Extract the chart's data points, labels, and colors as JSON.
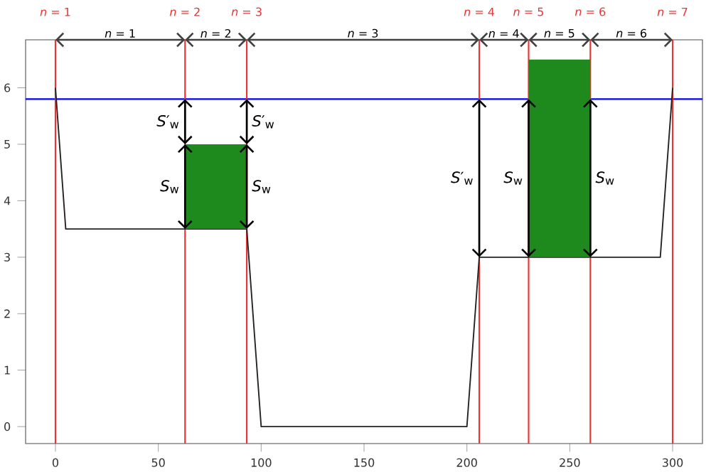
{
  "chart_data": {
    "type": "line",
    "xlim": [
      -14.5,
      314.5
    ],
    "ylim": [
      -0.3,
      6.85
    ],
    "xticks": [
      0,
      50,
      100,
      150,
      200,
      250,
      300
    ],
    "yticks": [
      0,
      1,
      2,
      3,
      4,
      5,
      6
    ],
    "marker": "none",
    "grid": false,
    "series": [
      {
        "color": "#222222",
        "x": [
          0,
          5,
          63,
          93,
          100,
          200,
          206,
          294,
          300
        ],
        "values": [
          6,
          3.5,
          3.5,
          3.5,
          0,
          0,
          3,
          3,
          6
        ]
      },
      {
        "type": "bar",
        "color": "#1e8a1e",
        "x": [
          78,
          245
        ],
        "base": [
          3.5,
          3
        ],
        "values": [
          1.5,
          3.5
        ]
      }
    ],
    "ref_lines": [
      {
        "axis": "y",
        "value": 5.8,
        "color": "#0000ff"
      },
      {
        "axis": "x",
        "value": 0,
        "color": "#ee3333"
      },
      {
        "axis": "x",
        "value": 63,
        "color": "#ee3333"
      },
      {
        "axis": "x",
        "value": 93,
        "color": "#ee3333"
      },
      {
        "axis": "x",
        "value": 206,
        "color": "#ee3333"
      },
      {
        "axis": "x",
        "value": 230,
        "color": "#ee3333"
      },
      {
        "axis": "x",
        "value": 260,
        "color": "#ee3333"
      },
      {
        "axis": "x",
        "value": 300,
        "color": "#ee3333"
      }
    ],
    "annotations": [
      "*n* = 1",
      "*n* = 2",
      "*n* = 3",
      "*n* = 4",
      "*n* = 5",
      "*n* = 6",
      "*n* = 7",
      "*n* = 1",
      "*n* = 2",
      "*n* = 3",
      "*n* = 4",
      "*n* = 5",
      "*n* = 6",
      "*S*′$_{w}$",
      "*S*$_{w}$",
      "*S*′$_{w}$",
      "*S*$_{w}$",
      "*S*$_{w}$",
      "*S*$_{w}$",
      "*S*′$_{w}$"
    ]
  }
}
